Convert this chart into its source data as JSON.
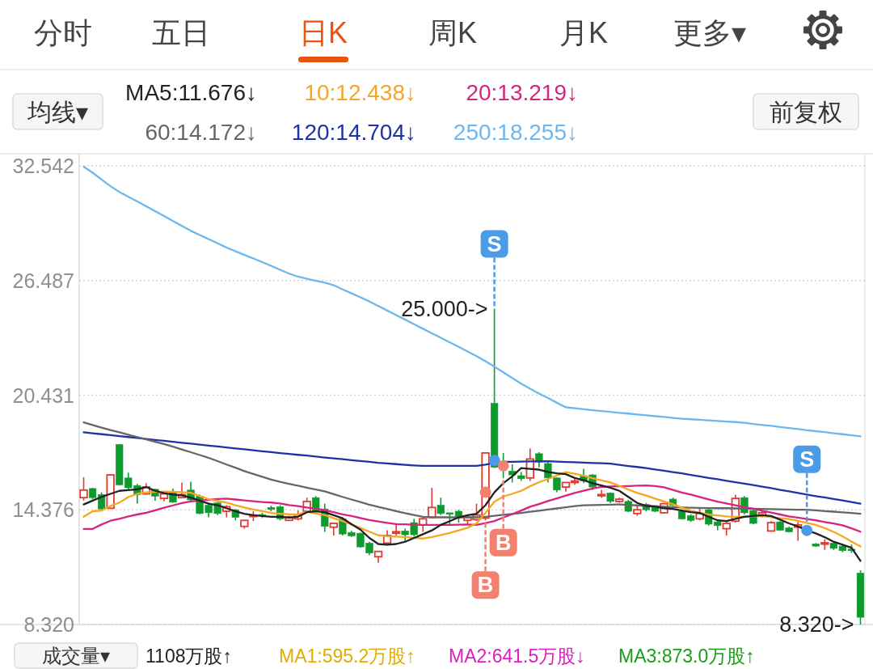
{
  "chart_data": {
    "type": "candlestick",
    "title": "日K",
    "categories": [
      null,
      null,
      null,
      null,
      null,
      null,
      null,
      null,
      null,
      null,
      null,
      null,
      null,
      null,
      null,
      null,
      null,
      null,
      null,
      null,
      null,
      null,
      null,
      null,
      null,
      null,
      null,
      null,
      null,
      null,
      null,
      null,
      null,
      null,
      null,
      null,
      null,
      null,
      null,
      null,
      null,
      null,
      null,
      null,
      null,
      null,
      null,
      null,
      null,
      null,
      null,
      null,
      null,
      null,
      null,
      null,
      null,
      null,
      null,
      null,
      null,
      null,
      null,
      null,
      null,
      null,
      null,
      null,
      null,
      null,
      null,
      null,
      null,
      null,
      null,
      null,
      null,
      null,
      null,
      null,
      null,
      null,
      null,
      null,
      null,
      null,
      null,
      null
    ],
    "ohlc": [
      [
        15.02,
        16.1,
        14.86,
        15.42
      ],
      [
        15.5,
        15.54,
        14.94,
        15.02
      ],
      [
        15.18,
        15.3,
        14.38,
        14.42
      ],
      [
        14.46,
        16.26,
        14.42,
        16.22
      ],
      [
        17.82,
        17.86,
        15.66,
        15.7
      ],
      [
        16.06,
        16.34,
        15.38,
        15.54
      ],
      [
        15.66,
        15.74,
        14.7,
        15.18
      ],
      [
        15.22,
        15.78,
        15.18,
        15.58
      ],
      [
        15.46,
        15.5,
        14.86,
        15.1
      ],
      [
        14.98,
        15.3,
        14.82,
        15.22
      ],
      [
        15.34,
        15.5,
        14.74,
        14.78
      ],
      [
        15.02,
        15.82,
        14.98,
        15.18
      ],
      [
        15.42,
        15.86,
        14.86,
        14.9
      ],
      [
        15.1,
        15.18,
        14.14,
        14.18
      ],
      [
        14.62,
        14.74,
        13.98,
        14.22
      ],
      [
        14.74,
        14.78,
        14.1,
        14.18
      ],
      [
        14.3,
        14.62,
        13.98,
        14.54
      ],
      [
        14.38,
        14.42,
        13.82,
        13.98
      ],
      [
        13.5,
        13.82,
        13.38,
        13.82
      ],
      [
        14.02,
        14.3,
        13.78,
        14.1
      ],
      [
        14.12,
        14.22,
        13.94,
        14.06
      ],
      [
        14.5,
        14.6,
        14.3,
        14.4
      ],
      [
        14.54,
        14.62,
        13.82,
        13.9
      ],
      [
        13.82,
        14.06,
        13.78,
        13.98
      ],
      [
        13.9,
        14.34,
        13.82,
        14.1
      ],
      [
        14.3,
        15.02,
        14.26,
        14.82
      ],
      [
        15.02,
        15.1,
        14.26,
        14.3
      ],
      [
        14.42,
        14.7,
        13.22,
        13.5
      ],
      [
        13.46,
        13.66,
        13.02,
        13.66
      ],
      [
        13.9,
        13.98,
        13.02,
        13.1
      ],
      [
        13.18,
        13.26,
        12.94,
        13.0
      ],
      [
        13.14,
        13.18,
        12.38,
        12.42
      ],
      [
        12.62,
        12.7,
        11.98,
        12.1
      ],
      [
        11.9,
        12.18,
        11.58,
        12.18
      ],
      [
        12.62,
        13.3,
        12.5,
        13.02
      ],
      [
        13.14,
        13.58,
        13.02,
        13.22
      ],
      [
        13.26,
        13.38,
        12.74,
        13.06
      ],
      [
        13.7,
        13.9,
        12.98,
        13.06
      ],
      [
        13.58,
        13.98,
        13.22,
        13.9
      ],
      [
        13.98,
        15.54,
        13.94,
        14.5
      ],
      [
        14.62,
        15.02,
        14.1,
        14.18
      ],
      [
        14.22,
        14.22,
        13.58,
        14.14
      ],
      [
        14.3,
        14.38,
        13.7,
        14.02
      ],
      [
        13.82,
        14.06,
        13.58,
        13.98
      ],
      [
        13.86,
        14.7,
        13.78,
        14.1
      ],
      [
        13.94,
        17.42,
        13.82,
        17.38
      ],
      [
        20.0,
        25.0,
        16.58,
        16.62
      ],
      [
        16.9,
        17.38,
        16.06,
        16.5
      ],
      [
        16.42,
        16.78,
        15.82,
        16.22
      ],
      [
        16.18,
        16.38,
        15.9,
        16.02
      ],
      [
        16.06,
        17.62,
        15.9,
        17.06
      ],
      [
        17.34,
        17.42,
        16.62,
        16.9
      ],
      [
        16.82,
        16.9,
        15.82,
        16.06
      ],
      [
        16.06,
        16.1,
        15.3,
        15.42
      ],
      [
        15.58,
        15.82,
        15.34,
        15.82
      ],
      [
        15.82,
        16.02,
        15.7,
        15.9
      ],
      [
        16.18,
        16.54,
        15.78,
        15.9
      ],
      [
        16.22,
        16.26,
        15.42,
        15.58
      ],
      [
        15.12,
        15.42,
        15.02,
        15.18
      ],
      [
        15.26,
        15.3,
        14.74,
        14.82
      ],
      [
        14.82,
        15.02,
        14.74,
        14.94
      ],
      [
        14.82,
        14.9,
        14.26,
        14.3
      ],
      [
        14.18,
        14.58,
        14.06,
        14.38
      ],
      [
        14.66,
        14.74,
        14.3,
        14.38
      ],
      [
        14.5,
        14.54,
        14.26,
        14.3
      ],
      [
        14.22,
        14.74,
        14.18,
        14.7
      ],
      [
        14.94,
        15.02,
        14.58,
        14.62
      ],
      [
        14.3,
        14.38,
        13.86,
        13.9
      ],
      [
        14.06,
        14.14,
        13.74,
        13.82
      ],
      [
        13.9,
        14.5,
        13.82,
        14.18
      ],
      [
        14.38,
        14.46,
        13.54,
        13.62
      ],
      [
        13.74,
        13.78,
        13.3,
        13.54
      ],
      [
        13.38,
        13.78,
        13.02,
        13.66
      ],
      [
        13.78,
        15.18,
        13.7,
        14.98
      ],
      [
        15.02,
        15.1,
        14.14,
        14.22
      ],
      [
        14.34,
        14.42,
        13.62,
        13.66
      ],
      [
        14.1,
        14.34,
        13.98,
        14.22
      ],
      [
        13.26,
        13.78,
        13.22,
        13.7
      ],
      [
        13.74,
        13.78,
        13.26,
        13.3
      ],
      [
        13.42,
        13.5,
        13.18,
        13.22
      ],
      [
        13.46,
        13.74,
        12.74,
        13.58
      ],
      null,
      [
        12.58,
        12.62,
        12.42,
        12.46
      ],
      [
        12.58,
        12.82,
        12.26,
        12.62
      ],
      [
        12.62,
        12.7,
        12.26,
        12.34
      ],
      [
        12.46,
        12.5,
        12.14,
        12.22
      ],
      [
        12.3,
        12.54,
        12.1,
        12.22
      ],
      [
        11.03,
        11.18,
        8.32,
        8.7
      ]
    ],
    "colors": [
      "#e23a32",
      "#0d9b2e",
      "#0d9b2e",
      "#e23a32",
      "#0d9b2e",
      "#0d9b2e",
      "#0d9b2e",
      "#e23a32",
      "#0d9b2e",
      "#e23a32",
      "#0d9b2e",
      "#e23a32",
      "#0d9b2e",
      "#0d9b2e",
      "#0d9b2e",
      "#0d9b2e",
      "#e23a32",
      "#0d9b2e",
      "#e23a32",
      "#e23a32",
      "#0d9b2e",
      "#0d9b2e",
      "#0d9b2e",
      "#e23a32",
      "#e23a32",
      "#e23a32",
      "#0d9b2e",
      "#0d9b2e",
      "#e23a32",
      "#0d9b2e",
      "#0d9b2e",
      "#0d9b2e",
      "#0d9b2e",
      "#e23a32",
      "#e23a32",
      "#e23a32",
      "#0d9b2e",
      "#0d9b2e",
      "#e23a32",
      "#e23a32",
      "#0d9b2e",
      "#0d9b2e",
      "#0d9b2e",
      "#e23a32",
      "#e23a32",
      "#e23a32",
      "#0d9b2e",
      "#0d9b2e",
      "#0d9b2e",
      "#0d9b2e",
      "#e23a32",
      "#0d9b2e",
      "#0d9b2e",
      "#0d9b2e",
      "#e23a32",
      "#e23a32",
      "#0d9b2e",
      "#0d9b2e",
      "#e23a32",
      "#0d9b2e",
      "#e23a32",
      "#0d9b2e",
      "#e23a32",
      "#0d9b2e",
      "#0d9b2e",
      "#e23a32",
      "#0d9b2e",
      "#0d9b2e",
      "#0d9b2e",
      "#e23a32",
      "#0d9b2e",
      "#0d9b2e",
      "#e23a32",
      "#e23a32",
      "#0d9b2e",
      "#0d9b2e",
      "#e23a32",
      "#e23a32",
      "#0d9b2e",
      "#0d9b2e",
      "#e23a32",
      null,
      "#0d9b2e",
      "#e23a32",
      "#0d9b2e",
      "#0d9b2e",
      "#0d9b2e",
      "#0d9b2e"
    ],
    "series": [
      {
        "name": "MA5:11.676↓",
        "type": "line",
        "color": "#222222",
        "values": [
          14.66,
          14.86,
          15.06,
          15.22,
          15.38,
          15.42,
          15.46,
          15.58,
          15.38,
          15.26,
          15.18,
          15.14,
          15.02,
          14.86,
          14.7,
          14.62,
          14.46,
          14.3,
          14.17,
          14.09,
          14.05,
          14.01,
          14.01,
          13.97,
          14.01,
          14.25,
          14.3,
          14.25,
          14.09,
          13.93,
          13.62,
          13.33,
          12.89,
          12.57,
          12.53,
          12.57,
          12.69,
          12.89,
          13.09,
          13.29,
          13.58,
          13.78,
          13.98,
          14.09,
          14.17,
          14.62,
          15.3,
          15.78,
          16.14,
          16.58,
          16.54,
          16.5,
          16.38,
          16.3,
          16.26,
          16.06,
          15.94,
          15.78,
          15.66,
          15.54,
          15.38,
          15.06,
          14.74,
          14.58,
          14.54,
          14.46,
          14.42,
          14.34,
          14.25,
          14.21,
          14.01,
          13.82,
          13.78,
          13.9,
          14.01,
          14.05,
          14.09,
          14.05,
          13.86,
          13.66,
          13.5,
          13.29,
          13.13,
          12.93,
          12.69,
          12.53,
          12.37,
          11.68
        ]
      },
      {
        "name": "10:12.438↓",
        "type": "line",
        "color": "#f5a623",
        "values": [
          14.01,
          14.3,
          14.34,
          14.58,
          14.76,
          15.05,
          15.22,
          15.3,
          15.32,
          15.34,
          15.33,
          15.31,
          15.28,
          15.1,
          14.94,
          14.84,
          14.76,
          14.62,
          14.5,
          14.39,
          14.31,
          14.21,
          14.17,
          14.14,
          14.13,
          14.28,
          14.18,
          14.1,
          13.93,
          13.78,
          13.6,
          13.42,
          13.22,
          13.03,
          12.98,
          12.96,
          12.94,
          12.9,
          12.86,
          12.94,
          13.05,
          13.15,
          13.29,
          13.43,
          13.66,
          14.21,
          14.8,
          15.08,
          15.22,
          15.38,
          15.62,
          15.84,
          16.0,
          16.19,
          16.37,
          16.28,
          16.18,
          16.05,
          15.93,
          15.82,
          15.64,
          15.45,
          15.27,
          15.13,
          14.97,
          14.82,
          14.68,
          14.49,
          14.33,
          14.21,
          14.13,
          14.08,
          14.03,
          14.01,
          14.02,
          14.03,
          14.05,
          13.99,
          13.93,
          13.89,
          13.79,
          13.69,
          13.58,
          13.41,
          13.21,
          12.98,
          12.7,
          12.44
        ]
      },
      {
        "name": "20:13.219↓",
        "type": "line",
        "color": "#d6247f",
        "values": [
          13.37,
          13.37,
          13.6,
          13.8,
          13.9,
          14.03,
          14.13,
          14.22,
          14.35,
          14.49,
          14.61,
          14.73,
          14.82,
          14.86,
          14.9,
          14.95,
          14.97,
          14.92,
          14.87,
          14.83,
          14.79,
          14.76,
          14.71,
          14.63,
          14.57,
          14.5,
          14.43,
          14.36,
          14.25,
          14.14,
          14.05,
          13.94,
          13.84,
          13.76,
          13.69,
          13.62,
          13.61,
          13.59,
          13.58,
          13.58,
          13.58,
          13.58,
          13.59,
          13.6,
          13.58,
          13.68,
          13.78,
          13.97,
          14.15,
          14.34,
          14.54,
          14.68,
          14.84,
          14.98,
          15.13,
          15.27,
          15.38,
          15.5,
          15.59,
          15.61,
          15.62,
          15.63,
          15.65,
          15.66,
          15.63,
          15.57,
          15.43,
          15.29,
          15.18,
          15.05,
          14.93,
          14.81,
          14.71,
          14.62,
          14.52,
          14.43,
          14.33,
          14.23,
          14.13,
          14.03,
          13.96,
          13.89,
          13.82,
          13.73,
          13.65,
          13.56,
          13.4,
          13.22
        ]
      },
      {
        "name": "60:14.172↓",
        "type": "line",
        "color": "#666666",
        "values": [
          18.99,
          18.86,
          18.72,
          18.59,
          18.47,
          18.34,
          18.22,
          18.1,
          17.97,
          17.85,
          17.71,
          17.56,
          17.42,
          17.27,
          17.12,
          16.95,
          16.77,
          16.6,
          16.42,
          16.27,
          16.12,
          15.97,
          15.85,
          15.75,
          15.65,
          15.55,
          15.45,
          15.35,
          15.2,
          15.06,
          14.92,
          14.79,
          14.65,
          14.53,
          14.42,
          14.31,
          14.2,
          14.1,
          14.01,
          13.98,
          13.98,
          13.98,
          13.98,
          13.98,
          13.98,
          14.01,
          14.06,
          14.11,
          14.16,
          14.21,
          14.27,
          14.33,
          14.39,
          14.45,
          14.51,
          14.57,
          14.62,
          14.63,
          14.64,
          14.65,
          14.66,
          14.64,
          14.61,
          14.59,
          14.57,
          14.54,
          14.52,
          14.5,
          14.49,
          14.48,
          14.47,
          14.46,
          14.46,
          14.45,
          14.44,
          14.43,
          14.42,
          14.41,
          14.4,
          14.39,
          14.38,
          14.38,
          14.35,
          14.31,
          14.28,
          14.24,
          14.21,
          14.17
        ]
      },
      {
        "name": "120:14.704↓",
        "type": "line",
        "color": "#1e32a8",
        "values": [
          18.47,
          18.42,
          18.37,
          18.32,
          18.27,
          18.22,
          18.17,
          18.12,
          18.07,
          18.02,
          17.97,
          17.92,
          17.87,
          17.82,
          17.77,
          17.72,
          17.67,
          17.62,
          17.57,
          17.52,
          17.47,
          17.42,
          17.37,
          17.33,
          17.28,
          17.24,
          17.19,
          17.14,
          17.09,
          17.05,
          17.0,
          16.95,
          16.91,
          16.86,
          16.83,
          16.79,
          16.75,
          16.72,
          16.7,
          16.7,
          16.7,
          16.7,
          16.7,
          16.7,
          16.7,
          16.76,
          16.86,
          16.91,
          16.91,
          16.92,
          16.93,
          16.93,
          16.94,
          16.92,
          16.9,
          16.89,
          16.87,
          16.85,
          16.84,
          16.82,
          16.75,
          16.69,
          16.64,
          16.58,
          16.51,
          16.44,
          16.37,
          16.3,
          16.22,
          16.14,
          16.06,
          15.99,
          15.91,
          15.83,
          15.76,
          15.68,
          15.6,
          15.52,
          15.43,
          15.35,
          15.27,
          15.18,
          15.1,
          15.03,
          14.95,
          14.87,
          14.79,
          14.7
        ]
      },
      {
        "name": "250:18.255↓",
        "type": "line",
        "color": "#6cb8ee",
        "values": [
          32.5,
          32.18,
          31.82,
          31.47,
          31.16,
          30.91,
          30.66,
          30.41,
          30.15,
          29.89,
          29.63,
          29.37,
          29.11,
          28.89,
          28.67,
          28.45,
          28.23,
          28.03,
          27.84,
          27.65,
          27.46,
          27.26,
          27.05,
          26.85,
          26.69,
          26.58,
          26.47,
          26.37,
          26.24,
          26.02,
          25.81,
          25.6,
          25.38,
          25.14,
          24.9,
          24.66,
          24.42,
          24.18,
          23.94,
          23.7,
          23.46,
          23.22,
          22.98,
          22.74,
          22.49,
          22.22,
          21.94,
          21.64,
          21.34,
          21.04,
          20.77,
          20.52,
          20.28,
          20.03,
          19.79,
          19.74,
          19.69,
          19.64,
          19.59,
          19.55,
          19.5,
          19.46,
          19.41,
          19.37,
          19.32,
          19.28,
          19.23,
          19.19,
          19.16,
          19.13,
          19.1,
          19.07,
          19.04,
          19.01,
          18.97,
          18.91,
          18.86,
          18.81,
          18.75,
          18.7,
          18.64,
          18.58,
          18.53,
          18.48,
          18.42,
          18.37,
          18.31,
          18.26
        ]
      },
      {
        "type": "scatter",
        "marker": "circle",
        "color": "#4a9be8",
        "values": [
          null,
          null,
          null,
          null,
          null,
          null,
          null,
          null,
          null,
          null,
          null,
          null,
          null,
          null,
          null,
          null,
          null,
          null,
          null,
          null,
          null,
          null,
          null,
          null,
          null,
          null,
          null,
          null,
          null,
          null,
          null,
          null,
          null,
          null,
          null,
          null,
          null,
          null,
          null,
          null,
          null,
          null,
          null,
          null,
          null,
          null,
          16.98,
          null,
          null,
          null,
          null,
          null,
          null,
          null,
          null,
          null,
          null,
          null,
          null,
          null,
          null,
          null,
          null,
          null,
          null,
          null,
          null,
          null,
          null,
          null,
          null,
          null,
          null,
          null,
          null,
          null,
          null,
          null,
          null,
          null,
          null,
          13.29,
          null,
          null,
          null,
          null,
          null,
          null
        ]
      },
      {
        "type": "scatter",
        "marker": "circle",
        "color": "#f2816f",
        "values": [
          null,
          null,
          null,
          null,
          null,
          null,
          null,
          null,
          null,
          null,
          null,
          null,
          null,
          null,
          null,
          null,
          null,
          null,
          null,
          null,
          null,
          null,
          null,
          null,
          null,
          null,
          null,
          null,
          null,
          null,
          null,
          null,
          null,
          null,
          null,
          null,
          null,
          null,
          null,
          null,
          null,
          null,
          null,
          null,
          null,
          15.3,
          null,
          16.7,
          null,
          null,
          null,
          null,
          null,
          null,
          null,
          null,
          null,
          null,
          null,
          null,
          null,
          null,
          null,
          null,
          null,
          null,
          null,
          null,
          null,
          null,
          null,
          null,
          null,
          null,
          null,
          null,
          null,
          null,
          null,
          null,
          null,
          null,
          null,
          null,
          null,
          null,
          null,
          null
        ]
      }
    ],
    "ylim": [
      8.32,
      32.542
    ],
    "yticks": [
      {
        "value": 8.32,
        "label": "8.320"
      },
      14.376,
      20.431,
      26.487,
      32.542
    ],
    "grid": "y",
    "legend": "top",
    "tick_labels": "y",
    "annotations": [
      "分时",
      "五日",
      "周K",
      "月K",
      "更多▾",
      "均线▾",
      "前复权",
      "成交量▾",
      "1108万股↑",
      "MA1:595.2万股↑",
      "MA2:641.5万股↓",
      "MA3:873.0万股↑",
      "25.000->",
      "8.320->",
      "S",
      "S",
      "B",
      "B"
    ]
  }
}
